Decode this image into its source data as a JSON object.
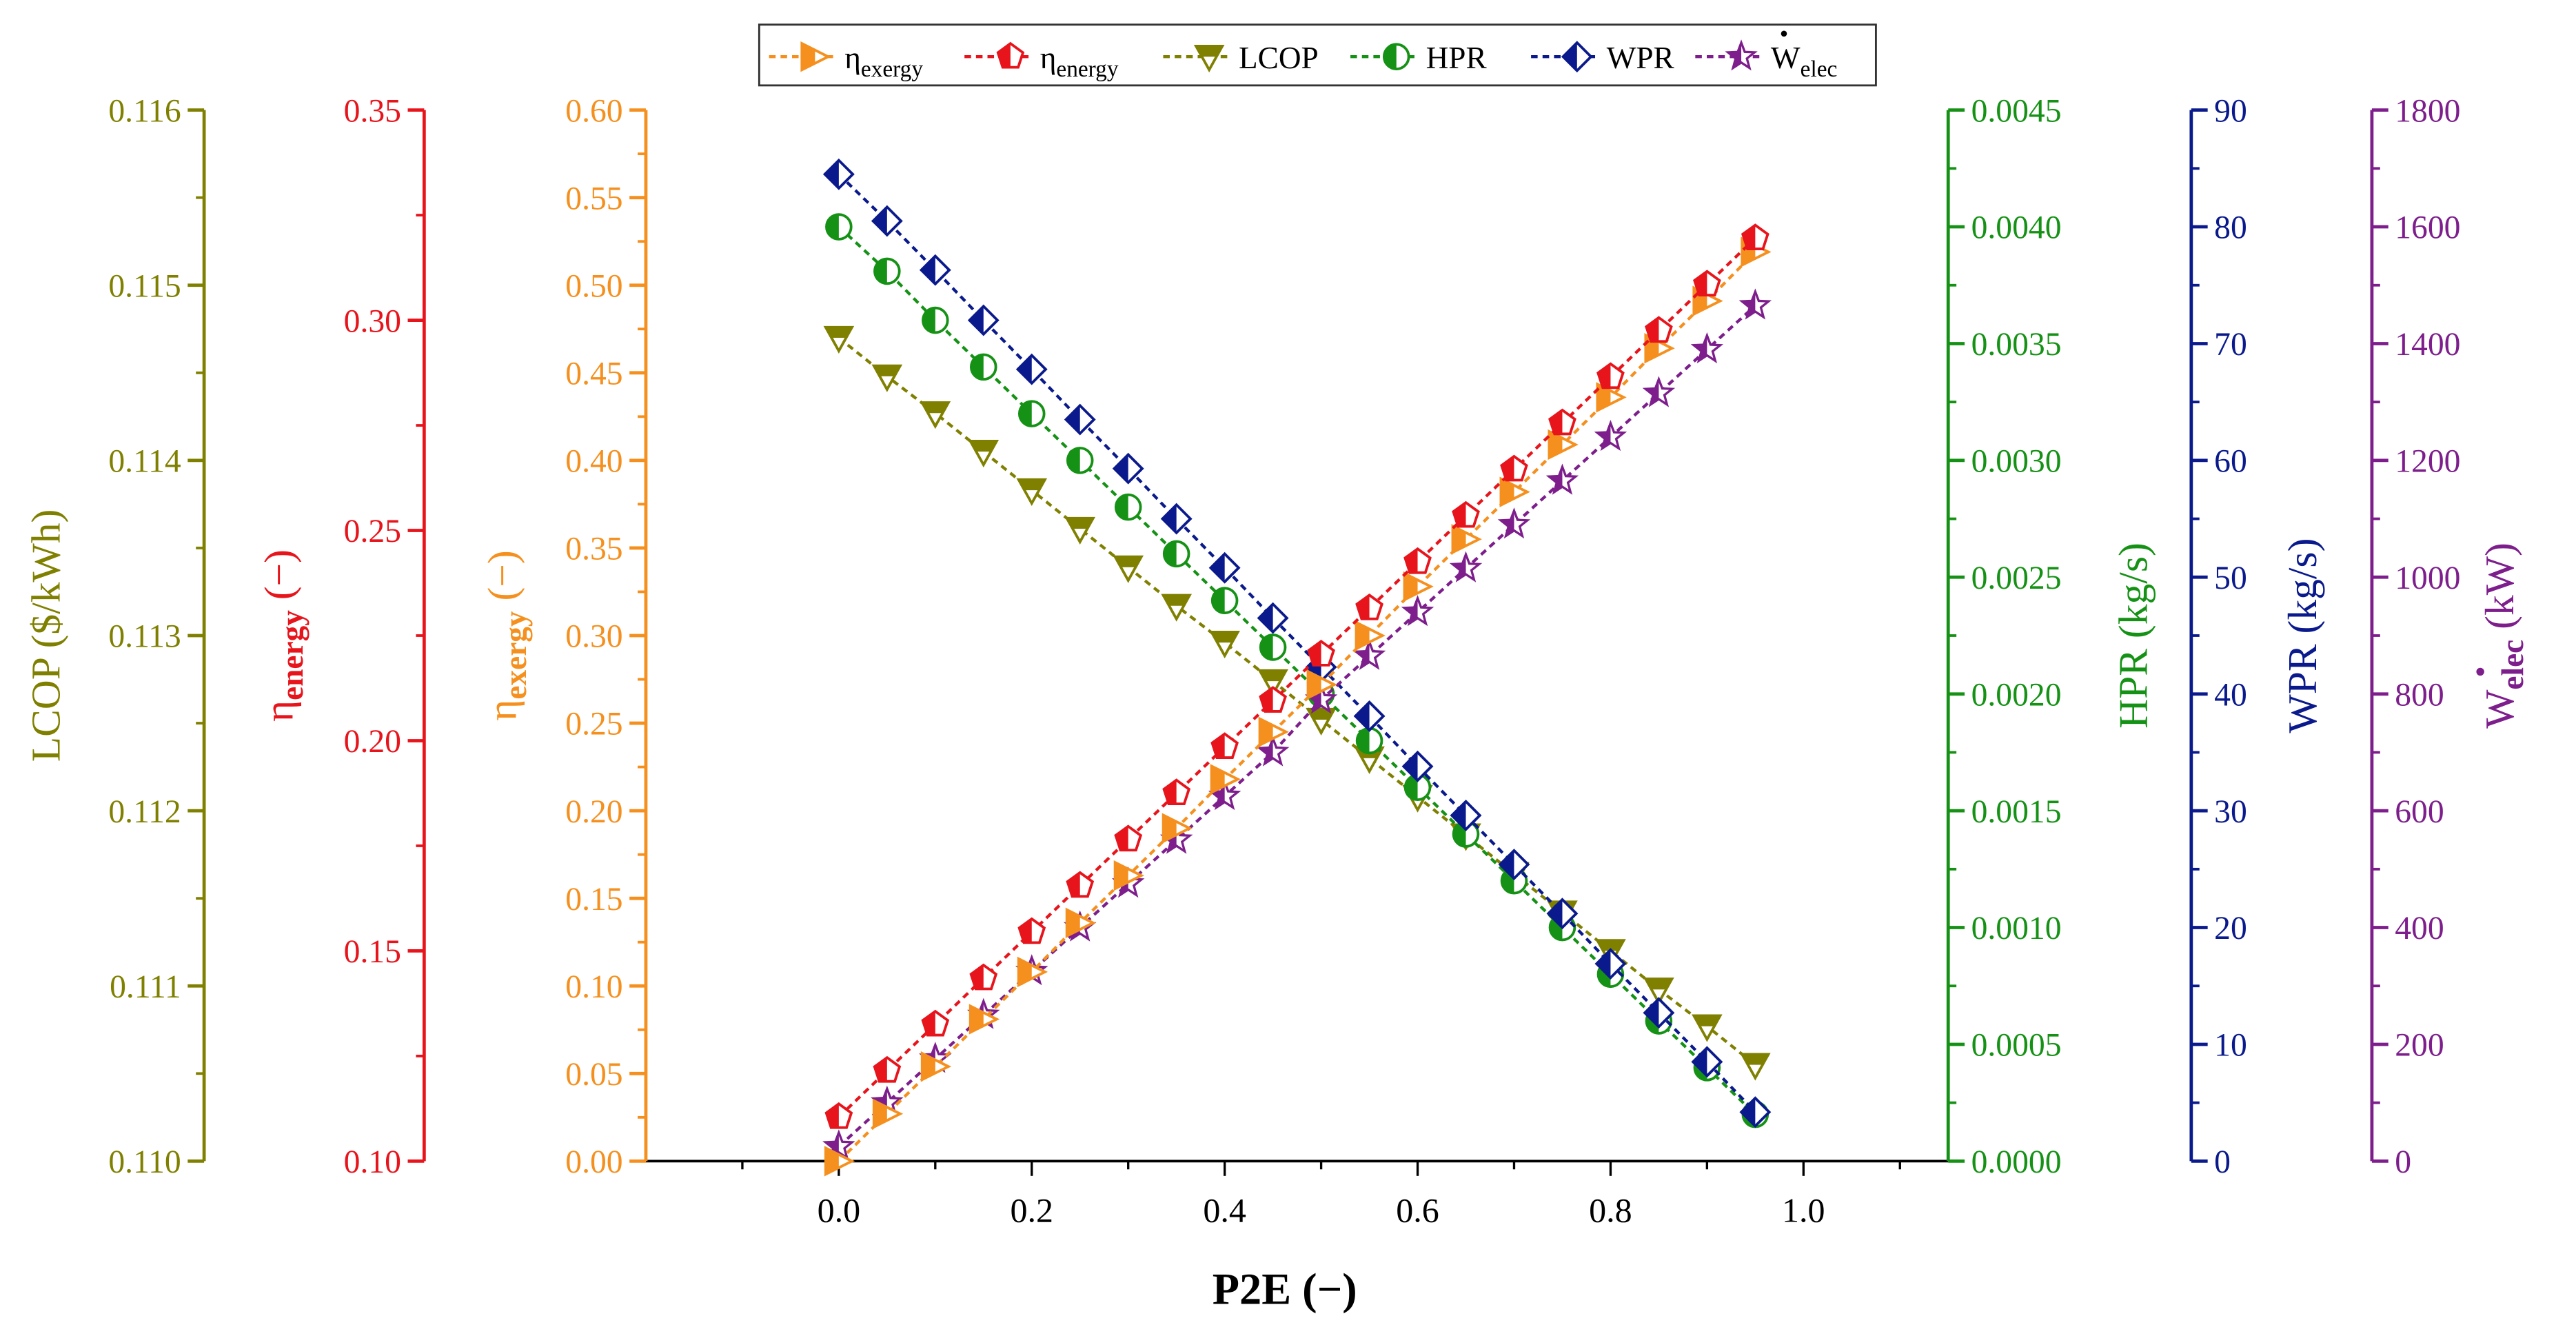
{
  "chart_data": {
    "type": "line",
    "title": "",
    "xlabel": "P2E (−)",
    "x_ticks": [
      "0.0",
      "0.2",
      "0.4",
      "0.6",
      "0.8",
      "1.0"
    ],
    "xlim": [
      -0.2,
      1.15
    ],
    "x": [
      0,
      0.05,
      0.1,
      0.15,
      0.2,
      0.25,
      0.3,
      0.35,
      0.4,
      0.45,
      0.5,
      0.55,
      0.6,
      0.65,
      0.7,
      0.75,
      0.8,
      0.85,
      0.9,
      0.95
    ],
    "series": [
      {
        "key": "exergy",
        "name": "η",
        "sub": "exergy",
        "color": "#f5901e",
        "marker": "triangle-right-half",
        "values": [
          0.0,
          0.027,
          0.054,
          0.081,
          0.108,
          0.136,
          0.163,
          0.19,
          0.218,
          0.245,
          0.272,
          0.3,
          0.328,
          0.355,
          0.382,
          0.409,
          0.436,
          0.464,
          0.491,
          0.519
        ]
      },
      {
        "key": "energy",
        "name": "η",
        "sub": "energy",
        "color": "#e8141c",
        "marker": "pentagon-half",
        "values": [
          0.1105,
          0.1215,
          0.1325,
          0.1435,
          0.1545,
          0.1655,
          0.1765,
          0.1875,
          0.1985,
          0.2095,
          0.2205,
          0.2315,
          0.2425,
          0.2535,
          0.2645,
          0.2755,
          0.2865,
          0.2975,
          0.3085,
          0.3195
        ]
      },
      {
        "key": "lcop",
        "name": "LCOP",
        "sub": "",
        "color": "#808000",
        "marker": "triangle-down-half",
        "values": [
          0.1147,
          0.11448,
          0.11427,
          0.11405,
          0.11383,
          0.11361,
          0.11339,
          0.11317,
          0.11296,
          0.11274,
          0.11252,
          0.1123,
          0.11208,
          0.11186,
          0.11164,
          0.11142,
          0.1112,
          0.11098,
          0.11077,
          0.11055
        ]
      },
      {
        "key": "hpr",
        "name": "HPR",
        "sub": "",
        "color": "#159215",
        "marker": "circle-half",
        "values": [
          0.004,
          0.00381,
          0.0036,
          0.0034,
          0.0032,
          0.003,
          0.0028,
          0.0026,
          0.0024,
          0.0022,
          0.002,
          0.0018,
          0.0016,
          0.0014,
          0.0012,
          0.001,
          0.0008,
          0.0006,
          0.0004,
          0.0002
        ]
      },
      {
        "key": "wpr",
        "name": "WPR",
        "sub": "",
        "color": "#0a1a8c",
        "marker": "diamond-half",
        "values": [
          84.5,
          80.5,
          76.3,
          72.0,
          67.8,
          63.5,
          59.3,
          55.0,
          50.8,
          46.5,
          42.3,
          38.1,
          33.8,
          29.6,
          25.4,
          21.2,
          16.9,
          12.7,
          8.5,
          4.2
        ]
      },
      {
        "key": "welec",
        "name": "W",
        "sub": "elec",
        "color": "#7d1e8c",
        "marker": "star-half",
        "values": [
          25,
          100,
          175,
          250,
          325,
          400,
          475,
          550,
          625,
          700,
          790,
          865,
          940,
          1015,
          1090,
          1165,
          1240,
          1315,
          1390,
          1465
        ]
      }
    ],
    "axes": [
      {
        "key": "lcop",
        "title": "LCOP ($/kWh)",
        "color": "#808000",
        "side": "left",
        "range": [
          0.11,
          0.116
        ],
        "ticks": [
          "0.110",
          "0.111",
          "0.112",
          "0.113",
          "0.114",
          "0.115",
          "0.116"
        ]
      },
      {
        "key": "energy",
        "title": "η",
        "title_sub": "energy",
        "title_suffix": " (−)",
        "color": "#e8141c",
        "side": "left",
        "range": [
          0.1,
          0.35
        ],
        "ticks": [
          "0.10",
          "0.15",
          "0.20",
          "0.25",
          "0.30",
          "0.35"
        ]
      },
      {
        "key": "exergy",
        "title": "η",
        "title_sub": "exergy",
        "title_suffix": " (−)",
        "color": "#f5901e",
        "side": "left",
        "range": [
          0.0,
          0.6
        ],
        "ticks": [
          "0.00",
          "0.05",
          "0.10",
          "0.15",
          "0.20",
          "0.25",
          "0.30",
          "0.35",
          "0.40",
          "0.45",
          "0.50",
          "0.55",
          "0.60"
        ]
      },
      {
        "key": "hpr",
        "title": "HPR (kg/s)",
        "color": "#159215",
        "side": "right",
        "range": [
          0.0,
          0.0045
        ],
        "ticks": [
          "0.0000",
          "0.0005",
          "0.0010",
          "0.0015",
          "0.0020",
          "0.0025",
          "0.0030",
          "0.0035",
          "0.0040",
          "0.0045"
        ]
      },
      {
        "key": "wpr",
        "title": "WPR (kg/s)",
        "color": "#0a1a8c",
        "side": "right",
        "range": [
          0,
          90
        ],
        "ticks": [
          "0",
          "10",
          "20",
          "30",
          "40",
          "50",
          "60",
          "70",
          "80",
          "90"
        ]
      },
      {
        "key": "welec",
        "title": "W",
        "title_sub": "elec",
        "title_suffix": " (kW)",
        "color": "#7d1e8c",
        "side": "right",
        "range": [
          0,
          1800
        ],
        "ticks": [
          "0",
          "200",
          "400",
          "600",
          "800",
          "1000",
          "1200",
          "1400",
          "1600",
          "1800"
        ]
      }
    ],
    "legend": {
      "placement": "top-center",
      "border": true
    }
  }
}
